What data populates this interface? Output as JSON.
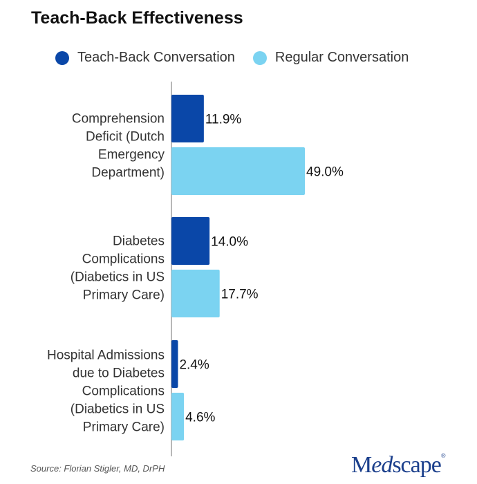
{
  "chart_data": {
    "type": "bar",
    "orientation": "horizontal",
    "title": "Teach-Back Effectiveness",
    "categories": [
      [
        "Comprehension",
        "Deficit (Dutch",
        "Emergency",
        "Department)"
      ],
      [
        "Diabetes",
        "Complications",
        "(Diabetics in US",
        "Primary Care)"
      ],
      [
        "Hospital Admissions",
        "due to Diabetes",
        "Complications",
        "(Diabetics in US",
        "Primary Care)"
      ]
    ],
    "series": [
      {
        "name": "Teach-Back Conversation",
        "color": "#0a47a8",
        "values": [
          11.9,
          14.0,
          2.4
        ],
        "labels": [
          "11.9%",
          "14.0%",
          "2.4%"
        ]
      },
      {
        "name": "Regular Conversation",
        "color": "#7bd3f1",
        "values": [
          49.0,
          17.7,
          4.6
        ],
        "labels": [
          "49.0%",
          "17.7%",
          "4.6%"
        ]
      }
    ],
    "xlim": [
      0,
      50
    ],
    "grid": false,
    "legend_position": "top",
    "source": "Source: Florian Stigler, MD, DrPH"
  },
  "logo": {
    "text": "Medscape"
  }
}
